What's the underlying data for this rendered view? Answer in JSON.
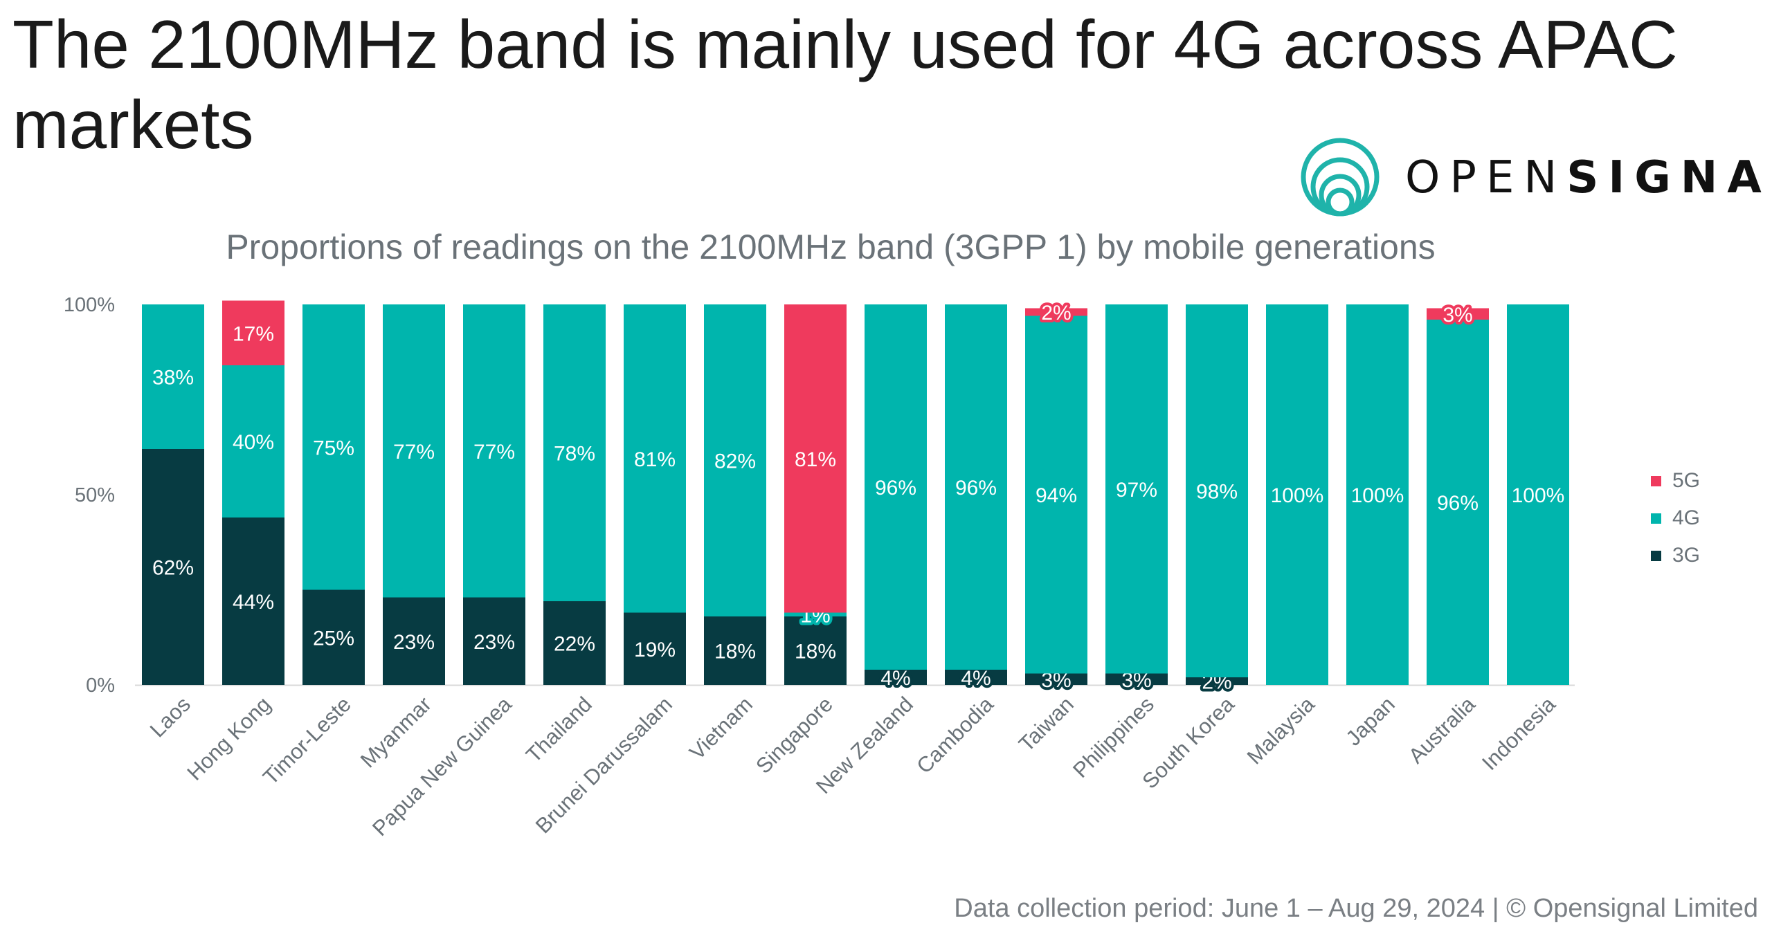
{
  "title": "The 2100MHz band is mainly used for 4G across APAC markets",
  "logo": {
    "text_light": "OPEN",
    "text_bold": "SIGNAL",
    "icon": "concentric-circles-icon"
  },
  "footer": "Data collection period: June 1 – Aug 29, 2024 | © Opensignal Limited",
  "colors": {
    "c5G": "#ef3a5d",
    "c4G": "#00b5ad",
    "c3G": "#073b42",
    "axis_text": "#6a7278",
    "logo": "#1fb3aa"
  },
  "chart_data": {
    "type": "bar",
    "stacked": true,
    "title": "Proportions of readings on the 2100MHz band (3GPP 1) by mobile generations",
    "xlabel": "",
    "ylabel": "",
    "ylim": [
      0,
      100
    ],
    "yticks": [
      "0%",
      "50%",
      "100%"
    ],
    "legend_position": "right",
    "categories": [
      "Laos",
      "Hong Kong",
      "Timor-Leste",
      "Myanmar",
      "Papua New Guinea",
      "Thailand",
      "Brunei Darussalam",
      "Vietnam",
      "Singapore",
      "New Zealand",
      "Cambodia",
      "Taiwan",
      "Philippines",
      "South Korea",
      "Malaysia",
      "Japan",
      "Australia",
      "Indonesia"
    ],
    "series": [
      {
        "name": "3G",
        "values": [
          62,
          44,
          25,
          23,
          23,
          22,
          19,
          18,
          18,
          4,
          4,
          3,
          3,
          2,
          0,
          0,
          0,
          0
        ]
      },
      {
        "name": "4G",
        "values": [
          38,
          40,
          75,
          77,
          77,
          78,
          81,
          82,
          1,
          96,
          96,
          94,
          97,
          98,
          100,
          100,
          96,
          100
        ]
      },
      {
        "name": "5G",
        "values": [
          0,
          17,
          0,
          0,
          0,
          0,
          0,
          0,
          81,
          0,
          0,
          2,
          0,
          0,
          0,
          0,
          3,
          0
        ]
      }
    ],
    "legend": [
      "5G",
      "4G",
      "3G"
    ]
  }
}
